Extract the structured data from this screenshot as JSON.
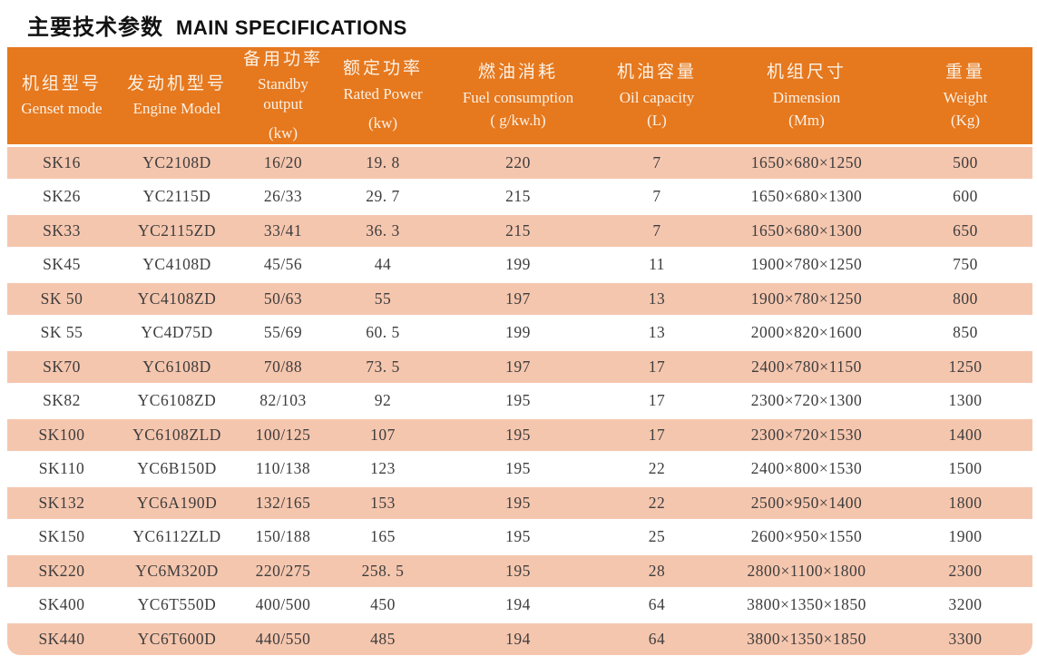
{
  "title": {
    "cn": "主要技术参数",
    "en": "MAIN SPECIFICATIONS"
  },
  "colors": {
    "header_bg": "#e6781e",
    "alt_row_bg": "#f5c6ae",
    "header_text": "#fbf2e6",
    "body_text": "#3d3d3d",
    "title_text": "#111111"
  },
  "table": {
    "columns": [
      {
        "key": "genset",
        "cn": "机组型号",
        "en": "Genset mode",
        "unit": ""
      },
      {
        "key": "engine",
        "cn": "发动机型号",
        "en": "Engine Model",
        "unit": ""
      },
      {
        "key": "standby",
        "cn": "备用功率",
        "en": "Standby output",
        "unit": "(kw)"
      },
      {
        "key": "rated",
        "cn": "额定功率",
        "en": "Rated Power",
        "unit": "(kw)"
      },
      {
        "key": "fuel",
        "cn": "燃油消耗",
        "en": "Fuel consumption",
        "unit": "( g/kw.h)"
      },
      {
        "key": "oil",
        "cn": "机油容量",
        "en": "Oil capacity",
        "unit": "(L)"
      },
      {
        "key": "dimension",
        "cn": "机组尺寸",
        "en": "Dimension",
        "unit": "(Mm)"
      },
      {
        "key": "weight",
        "cn": "重量",
        "en": "Weight",
        "unit": "(Kg)"
      }
    ],
    "rows": [
      [
        "SK16",
        "YC2108D",
        "16/20",
        "19. 8",
        "220",
        "7",
        "1650×680×1250",
        "500"
      ],
      [
        "SK26",
        "YC2115D",
        "26/33",
        "29. 7",
        "215",
        "7",
        "1650×680×1300",
        "600"
      ],
      [
        "SK33",
        "YC2115ZD",
        "33/41",
        "36. 3",
        "215",
        "7",
        "1650×680×1300",
        "650"
      ],
      [
        "SK45",
        "YC4108D",
        "45/56",
        "44",
        "199",
        "11",
        "1900×780×1250",
        "750"
      ],
      [
        "SK 50",
        "YC4108ZD",
        "50/63",
        "55",
        "197",
        "13",
        "1900×780×1250",
        "800"
      ],
      [
        "SK 55",
        "YC4D75D",
        "55/69",
        "60. 5",
        "199",
        "13",
        "2000×820×1600",
        "850"
      ],
      [
        "SK70",
        "YC6108D",
        "70/88",
        "73. 5",
        "197",
        "17",
        "2400×780×1150",
        "1250"
      ],
      [
        "SK82",
        "YC6108ZD",
        "82/103",
        "92",
        "195",
        "17",
        "2300×720×1300",
        "1300"
      ],
      [
        "SK100",
        "YC6108ZLD",
        "100/125",
        "107",
        "195",
        "17",
        "2300×720×1530",
        "1400"
      ],
      [
        "SK110",
        "YC6B150D",
        "110/138",
        "123",
        "195",
        "22",
        "2400×800×1530",
        "1500"
      ],
      [
        "SK132",
        "YC6A190D",
        "132/165",
        "153",
        "195",
        "22",
        "2500×950×1400",
        "1800"
      ],
      [
        "SK150",
        "YC6112ZLD",
        "150/188",
        "165",
        "195",
        "25",
        "2600×950×1550",
        "1900"
      ],
      [
        "SK220",
        "YC6M320D",
        "220/275",
        "258. 5",
        "195",
        "28",
        "2800×1100×1800",
        "2300"
      ],
      [
        "SK400",
        "YC6T550D",
        "400/500",
        "450",
        "194",
        "64",
        "3800×1350×1850",
        "3200"
      ],
      [
        "SK440",
        "YC6T600D",
        "440/550",
        "485",
        "194",
        "64",
        "3800×1350×1850",
        "3300"
      ]
    ]
  }
}
